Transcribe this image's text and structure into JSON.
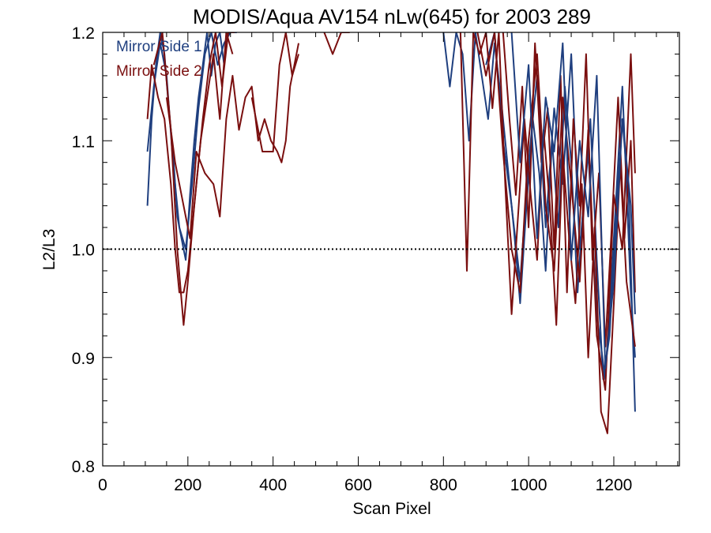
{
  "colors": {
    "mirror_side_1": "#1f3f7f",
    "mirror_side_2": "#7a0f0f",
    "axis": "#000000",
    "reference_line": "#000000"
  },
  "chart_data": {
    "type": "line",
    "title": "MODIS/Aqua AV154 nLw(645) for 2003 289",
    "xlabel": "Scan Pixel",
    "ylabel": "L2/L3",
    "xlim": [
      0,
      1354
    ],
    "ylim": [
      0.8,
      1.2
    ],
    "x_ticks": [
      "0",
      "200",
      "400",
      "600",
      "800",
      "1000",
      "1200"
    ],
    "y_ticks": [
      "0.8",
      "0.9",
      "1.0",
      "1.1",
      "1.2"
    ],
    "x_tick_values": [
      0,
      200,
      400,
      600,
      800,
      1000,
      1200
    ],
    "y_tick_values": [
      0.8,
      0.9,
      1.0,
      1.1,
      1.2
    ],
    "reference_line": {
      "y": 1.0,
      "style": "dotted"
    },
    "legend": {
      "placement": "top-left",
      "entries": [
        "Mirror Side 1",
        "Mirror Side 2"
      ]
    },
    "grid": false,
    "series": [
      {
        "name": "Mirror Side 1",
        "color_key": "mirror_side_1",
        "segment": "west",
        "x": [
          105,
          115,
          125,
          135,
          145,
          155,
          165,
          175,
          185,
          195,
          205,
          215,
          225,
          235,
          245,
          255,
          265,
          275,
          285,
          295,
          305,
          315
        ],
        "y": [
          1.04,
          1.12,
          1.17,
          1.2,
          1.18,
          1.13,
          1.09,
          1.03,
          1.01,
          0.99,
          1.05,
          1.1,
          1.14,
          1.17,
          1.2,
          1.16,
          1.19,
          1.2,
          1.17,
          1.2,
          1.2,
          1.2
        ]
      },
      {
        "name": "Mirror Side 1",
        "color_key": "mirror_side_1",
        "segment": "west",
        "x": [
          105,
          120,
          135,
          150,
          165,
          180,
          195,
          210,
          225,
          240,
          255,
          270,
          285,
          300
        ],
        "y": [
          1.09,
          1.15,
          1.19,
          1.16,
          1.08,
          1.02,
          1.0,
          1.06,
          1.13,
          1.18,
          1.2,
          1.17,
          1.19,
          1.2
        ]
      },
      {
        "name": "Mirror Side 2",
        "color_key": "mirror_side_2",
        "segment": "west",
        "x": [
          105,
          115,
          130,
          145,
          160,
          170,
          180,
          190,
          200,
          210,
          220,
          235,
          250,
          265,
          280,
          295,
          310
        ],
        "y": [
          1.12,
          1.17,
          1.14,
          1.12,
          1.06,
          1.0,
          0.96,
          0.96,
          0.98,
          1.02,
          1.06,
          1.12,
          1.17,
          1.2,
          1.15,
          1.2,
          1.2
        ]
      },
      {
        "name": "Mirror Side 2",
        "color_key": "mirror_side_2",
        "segment": "west",
        "x": [
          120,
          140,
          160,
          175,
          190,
          200,
          215,
          230,
          245,
          260,
          275,
          290,
          305
        ],
        "y": [
          1.17,
          1.2,
          1.11,
          1.0,
          0.93,
          0.97,
          1.04,
          1.1,
          1.14,
          1.18,
          1.12,
          1.2,
          1.18
        ]
      },
      {
        "name": "Mirror Side 2",
        "color_key": "mirror_side_2",
        "segment": "west",
        "x": [
          150,
          170,
          190,
          205,
          220,
          240,
          260,
          275,
          290,
          305,
          320,
          335,
          350,
          365,
          380,
          395,
          410,
          420,
          430,
          440,
          450,
          460
        ],
        "y": [
          1.14,
          1.08,
          1.04,
          1.01,
          1.09,
          1.07,
          1.06,
          1.03,
          1.12,
          1.16,
          1.11,
          1.14,
          1.15,
          1.1,
          1.12,
          1.1,
          1.09,
          1.08,
          1.1,
          1.15,
          1.17,
          1.19
        ]
      },
      {
        "name": "Mirror Side 2",
        "color_key": "mirror_side_2",
        "segment": "west",
        "x": [
          350,
          375,
          400,
          415,
          430,
          445,
          460
        ],
        "y": [
          1.14,
          1.09,
          1.09,
          1.17,
          1.2,
          1.16,
          1.18
        ]
      },
      {
        "name": "Mirror Side 2",
        "color_key": "mirror_side_2",
        "segment": "west",
        "x": [
          520,
          540,
          560,
          580
        ],
        "y": [
          1.2,
          1.18,
          1.2,
          1.2
        ]
      },
      {
        "name": "Mirror Side 1",
        "color_key": "mirror_side_1",
        "segment": "east",
        "x": [
          800,
          815,
          830,
          845,
          860,
          875,
          890,
          905,
          920,
          935,
          950,
          965,
          980,
          995,
          1010,
          1025,
          1040,
          1055,
          1070,
          1085,
          1100,
          1115,
          1130,
          1145,
          1160,
          1175,
          1190,
          1205,
          1220,
          1235,
          1250
        ],
        "y": [
          1.2,
          1.15,
          1.2,
          1.18,
          1.1,
          1.2,
          1.16,
          1.12,
          1.19,
          1.14,
          1.08,
          1.02,
          0.95,
          1.04,
          1.12,
          1.07,
          0.98,
          1.1,
          1.02,
          1.15,
          1.08,
          0.96,
          1.05,
          1.12,
          0.99,
          0.88,
          0.92,
          1.03,
          1.12,
          1.05,
          0.85
        ]
      },
      {
        "name": "Mirror Side 1",
        "color_key": "mirror_side_1",
        "segment": "east",
        "x": [
          900,
          920,
          940,
          960,
          980,
          1000,
          1020,
          1040,
          1060,
          1080,
          1100,
          1120,
          1140,
          1160,
          1180,
          1200,
          1220,
          1240,
          1250
        ],
        "y": [
          1.17,
          1.2,
          1.1,
          1.04,
          0.97,
          1.08,
          1.16,
          1.02,
          1.13,
          1.06,
          1.18,
          1.0,
          1.09,
          0.94,
          0.88,
          1.01,
          1.15,
          0.96,
          0.9
        ]
      },
      {
        "name": "Mirror Side 2",
        "color_key": "mirror_side_2",
        "segment": "east",
        "x": [
          840,
          855,
          870,
          885,
          900,
          915,
          930,
          945,
          960,
          975,
          990,
          1005,
          1020,
          1035,
          1050,
          1065,
          1080,
          1095,
          1110,
          1125,
          1140,
          1155,
          1170,
          1185,
          1200,
          1215,
          1230,
          1250
        ],
        "y": [
          1.2,
          0.98,
          1.2,
          1.18,
          1.2,
          1.13,
          1.2,
          1.06,
          0.94,
          1.03,
          1.12,
          1.05,
          0.99,
          1.11,
          1.04,
          0.93,
          1.09,
          1.01,
          0.95,
          1.06,
          0.9,
          1.02,
          0.85,
          0.83,
          0.95,
          1.08,
          0.97,
          0.91
        ]
      },
      {
        "name": "Mirror Side 2",
        "color_key": "mirror_side_2",
        "segment": "east",
        "x": [
          880,
          900,
          920,
          940,
          960,
          980,
          1000,
          1020,
          1040,
          1060,
          1080,
          1100,
          1120,
          1140,
          1160,
          1180,
          1200,
          1220,
          1240,
          1250
        ],
        "y": [
          1.2,
          1.16,
          1.2,
          1.09,
          1.0,
          0.96,
          1.1,
          1.18,
          1.04,
          0.98,
          1.14,
          1.06,
          0.97,
          1.11,
          0.92,
          0.87,
          1.05,
          1.0,
          1.18,
          1.07
        ]
      },
      {
        "name": "Mirror Side 2",
        "color_key": "mirror_side_2",
        "segment": "east",
        "x": [
          940,
          955,
          970,
          985,
          1000,
          1015,
          1030,
          1045,
          1060,
          1075,
          1090,
          1105,
          1120,
          1135,
          1150,
          1165,
          1180,
          1195,
          1210,
          1225,
          1240,
          1250
        ],
        "y": [
          1.2,
          1.12,
          1.05,
          1.15,
          1.02,
          1.19,
          1.08,
          1.13,
          1.0,
          1.16,
          0.96,
          1.12,
          1.04,
          1.18,
          0.99,
          1.07,
          0.91,
          1.02,
          1.14,
          1.01,
          1.1,
          0.96
        ]
      },
      {
        "name": "Mirror Side 1",
        "color_key": "mirror_side_1",
        "segment": "east",
        "x": [
          960,
          980,
          1000,
          1020,
          1040,
          1060,
          1080,
          1100,
          1120,
          1140,
          1160,
          1180,
          1200,
          1220,
          1240,
          1250
        ],
        "y": [
          1.2,
          1.08,
          1.17,
          1.01,
          1.14,
          1.09,
          1.19,
          0.99,
          1.1,
          1.03,
          1.16,
          0.89,
          0.97,
          1.12,
          1.04,
          0.94
        ]
      }
    ]
  }
}
